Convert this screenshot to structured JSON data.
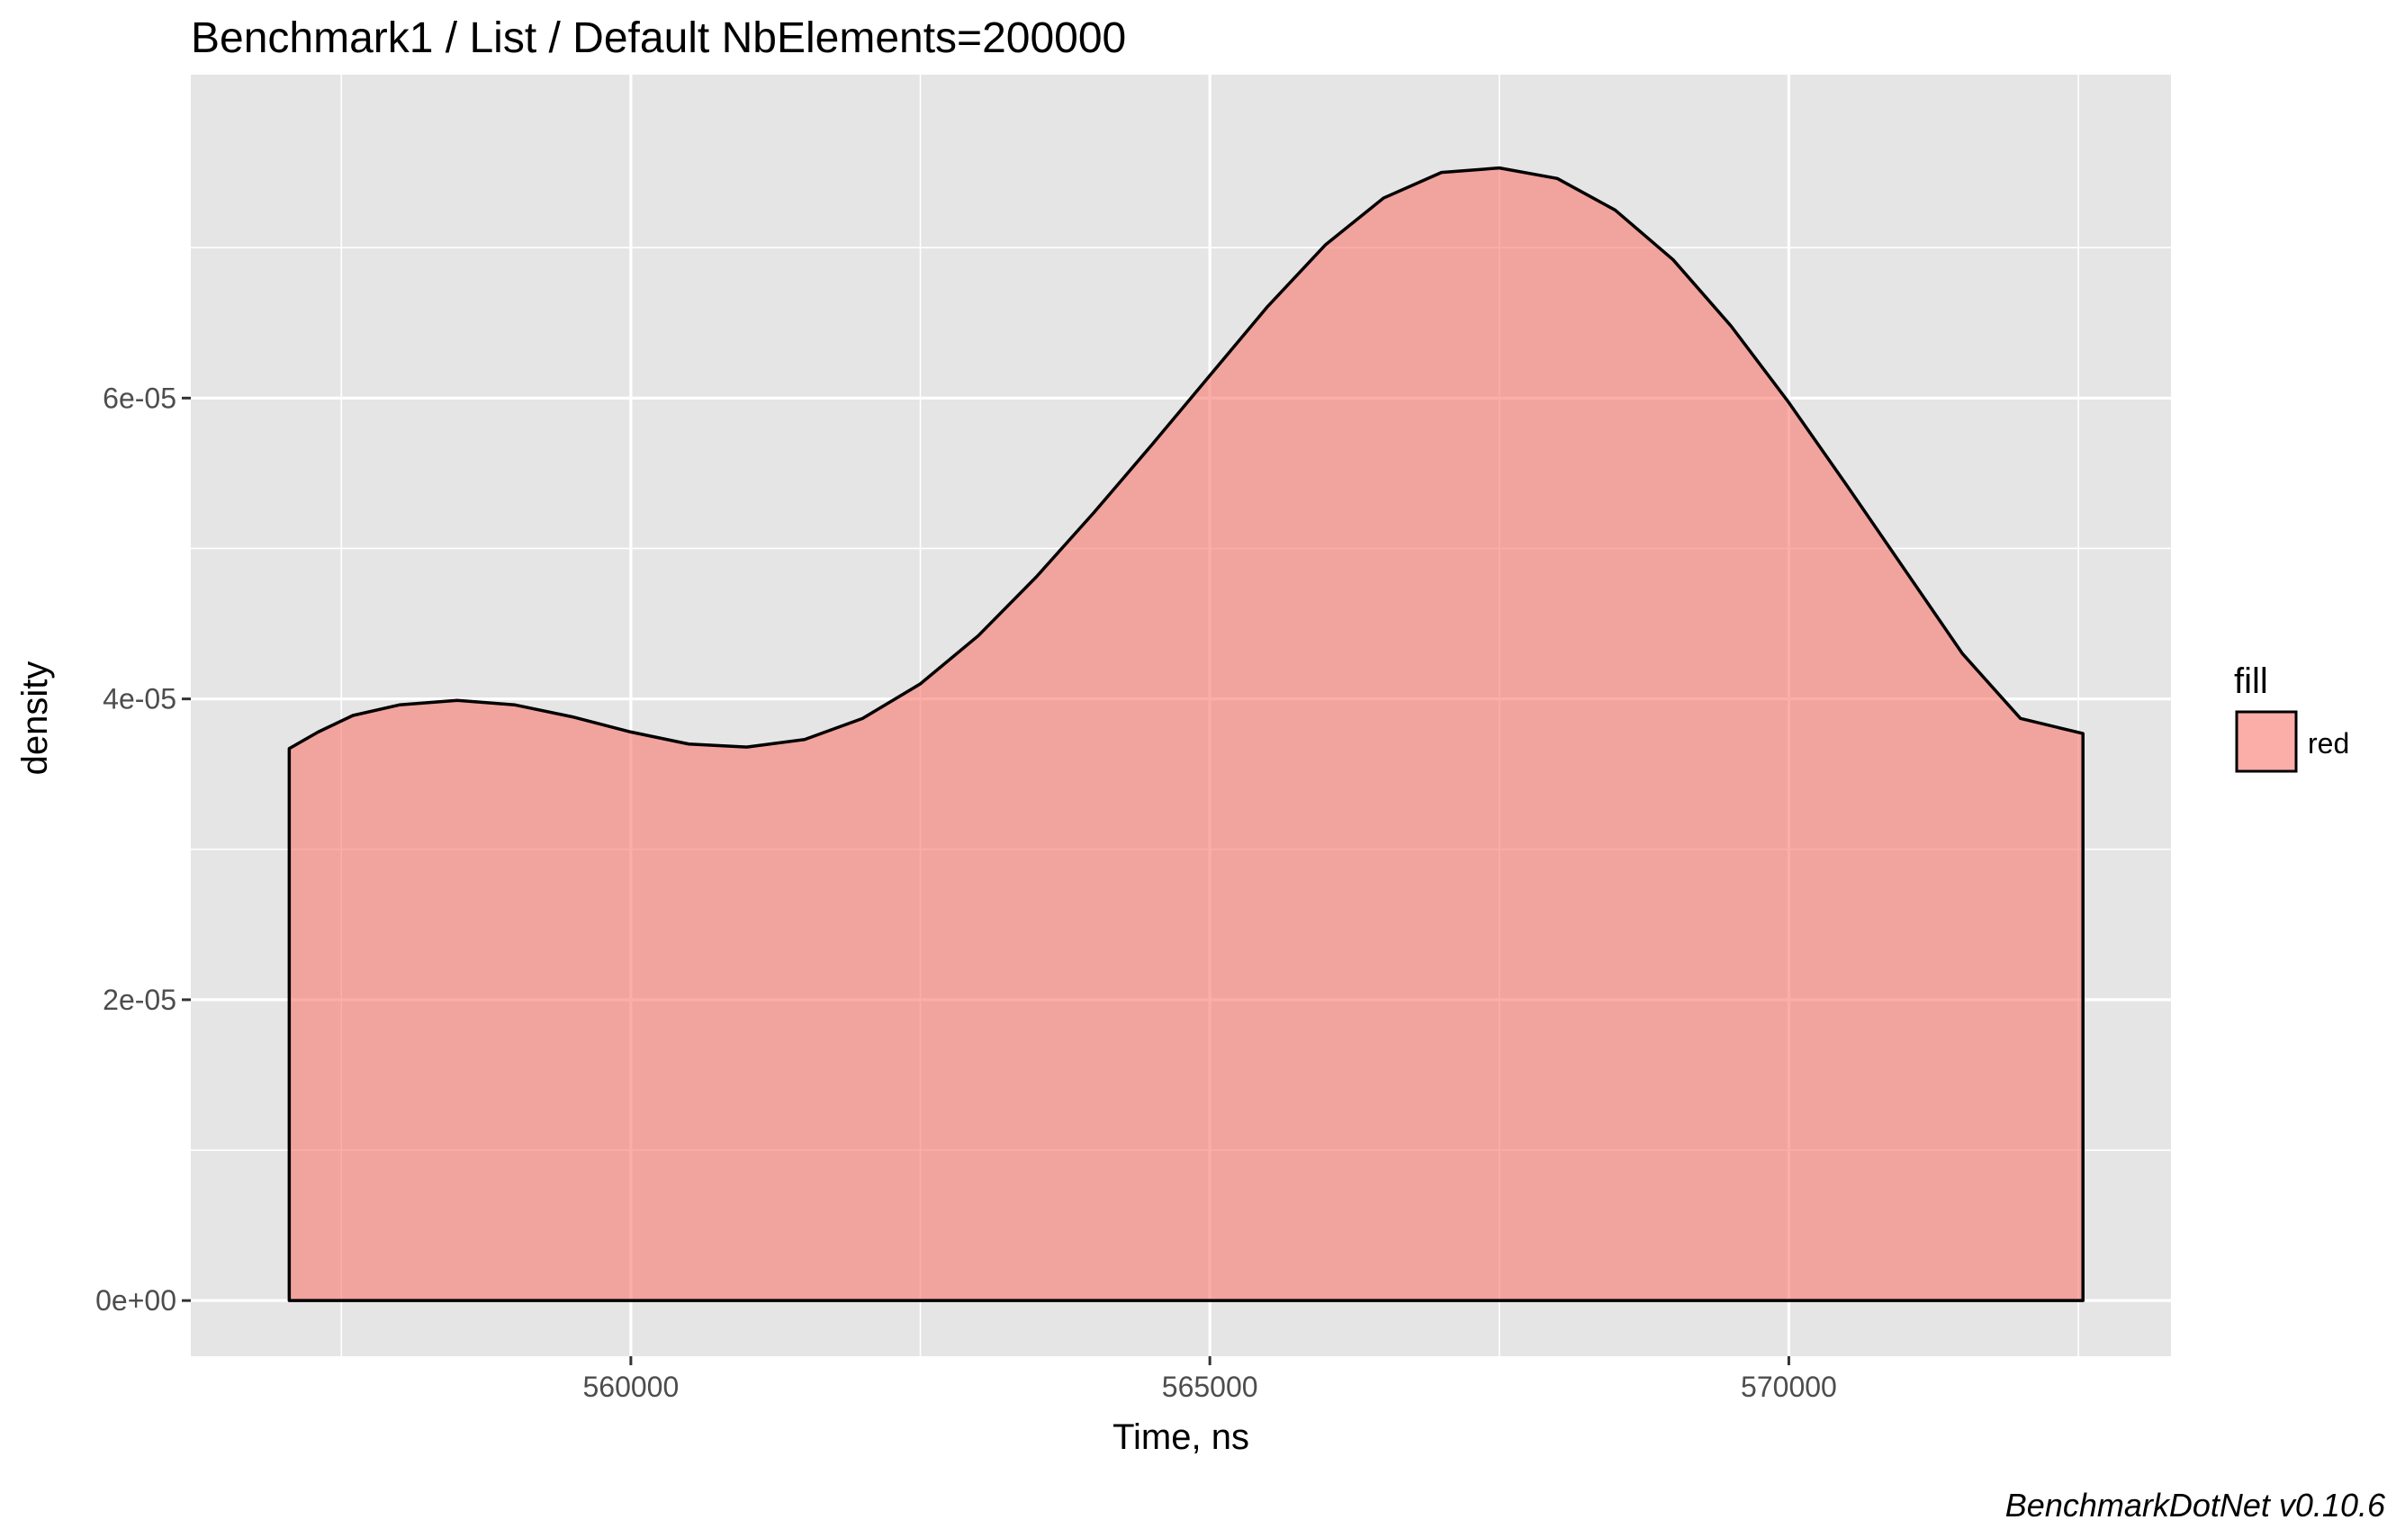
{
  "chart_data": {
    "type": "area",
    "title": "Benchmark1 / List / Default NbElements=200000",
    "xlabel": "Time, ns",
    "ylabel": "density",
    "caption": "BenchmarkDotNet v0.10.6",
    "xlim": [
      556200,
      573300
    ],
    "ylim": [
      -3.7e-06,
      8.15e-05
    ],
    "x_ticks": [
      {
        "value": 560000,
        "label": "560000"
      },
      {
        "value": 565000,
        "label": "565000"
      },
      {
        "value": 570000,
        "label": "570000"
      }
    ],
    "y_ticks": [
      {
        "value": 0,
        "label": "0e+00"
      },
      {
        "value": 2e-05,
        "label": "2e-05"
      },
      {
        "value": 4e-05,
        "label": "4e-05"
      },
      {
        "value": 6e-05,
        "label": "6e-05"
      }
    ],
    "x_minor": [
      557500,
      562500,
      567500,
      572500
    ],
    "y_minor": [
      1e-05,
      3e-05,
      5e-05,
      7e-05
    ],
    "grid": true,
    "legend": {
      "title": "fill",
      "position": "right",
      "entries": [
        {
          "label": "red",
          "color": "#f8766d"
        }
      ]
    },
    "fill_color": "#f8766d",
    "fill_opacity": 0.6,
    "panel_background": "#e5e5e5",
    "grid_color": "#ffffff",
    "series": [
      {
        "x": [
          557050,
          557300,
          557600,
          558000,
          558500,
          559000,
          559500,
          560000,
          560500,
          561000,
          561500,
          562000,
          562500,
          563000,
          563500,
          564000,
          564500,
          565000,
          565500,
          566000,
          566500,
          567000,
          567500,
          568000,
          568500,
          569000,
          569500,
          570000,
          570500,
          571000,
          571500,
          572000,
          572540
        ],
        "y": [
          3.67e-05,
          3.78e-05,
          3.89e-05,
          3.96e-05,
          3.99e-05,
          3.96e-05,
          3.88e-05,
          3.78e-05,
          3.7e-05,
          3.68e-05,
          3.73e-05,
          3.87e-05,
          4.1e-05,
          4.42e-05,
          4.81e-05,
          5.24e-05,
          5.69e-05,
          6.15e-05,
          6.61e-05,
          7.02e-05,
          7.33e-05,
          7.5e-05,
          7.53e-05,
          7.46e-05,
          7.25e-05,
          6.92e-05,
          6.48e-05,
          5.97e-05,
          5.42e-05,
          4.86e-05,
          4.3e-05,
          3.87e-05,
          3.77e-05
        ]
      }
    ]
  }
}
